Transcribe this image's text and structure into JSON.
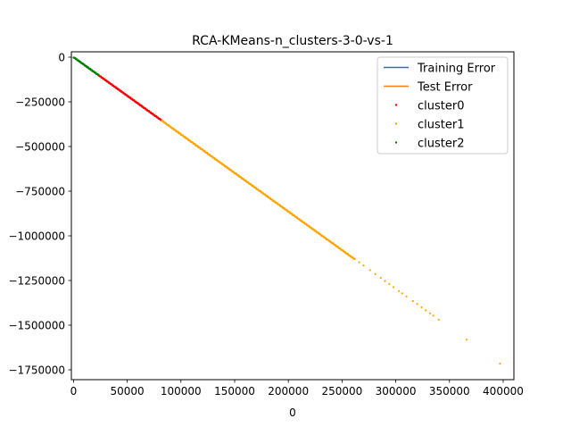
{
  "chart_data": {
    "type": "scatter",
    "title": "RCA-KMeans-n_clusters-3-0-vs-1",
    "xlabel": "0",
    "ylabel": "",
    "xlim": [
      -2000,
      410000
    ],
    "ylim": [
      -1805000,
      30000
    ],
    "xticks": [
      0,
      50000,
      100000,
      150000,
      200000,
      250000,
      300000,
      350000,
      400000
    ],
    "yticks": [
      0,
      -250000,
      -500000,
      -750000,
      -1000000,
      -1250000,
      -1500000,
      -1750000
    ],
    "grid": false,
    "legend_position": "top-right",
    "legend": [
      {
        "label": "Training Error",
        "kind": "line",
        "color": "#1f77b4"
      },
      {
        "label": "Test Error",
        "kind": "line",
        "color": "#ff7f0e"
      },
      {
        "label": "cluster0",
        "kind": "point",
        "color": "#ff0000"
      },
      {
        "label": "cluster1",
        "kind": "point",
        "color": "#ffa500"
      },
      {
        "label": "cluster2",
        "kind": "point",
        "color": "#008000"
      }
    ],
    "series": [
      {
        "name": "cluster2",
        "color": "#008000",
        "x_range": [
          0,
          24000
        ],
        "relation": "y = -4.32 * x",
        "approx_points": 90
      },
      {
        "name": "cluster0",
        "color": "#ff0000",
        "x_range": [
          24000,
          82000
        ],
        "relation": "y = -4.32 * x",
        "approx_points": 220
      },
      {
        "name": "cluster1",
        "color": "#ffa500",
        "x_range": [
          82000,
          262000
        ],
        "relation": "y = -4.32 * x",
        "approx_points": 520
      },
      {
        "name": "cluster1 (sparse tail)",
        "color": "#ffa500",
        "points": [
          [
            266000,
            -1148000
          ],
          [
            270000,
            -1166000
          ],
          [
            276000,
            -1192000
          ],
          [
            281000,
            -1214000
          ],
          [
            286000,
            -1235000
          ],
          [
            290000,
            -1253000
          ],
          [
            294000,
            -1270000
          ],
          [
            298000,
            -1287000
          ],
          [
            303000,
            -1309000
          ],
          [
            306000,
            -1322000
          ],
          [
            310000,
            -1339000
          ],
          [
            316000,
            -1365000
          ],
          [
            320000,
            -1382000
          ],
          [
            324000,
            -1400000
          ],
          [
            328000,
            -1417000
          ],
          [
            332000,
            -1434000
          ],
          [
            335000,
            -1447000
          ],
          [
            340000,
            -1469000
          ],
          [
            366000,
            -1581000
          ],
          [
            397000,
            -1715000
          ]
        ]
      }
    ]
  }
}
